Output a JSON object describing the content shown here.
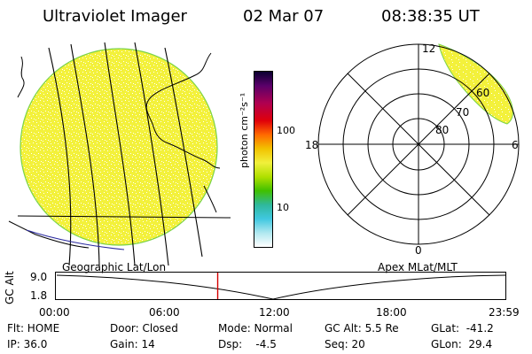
{
  "header": {
    "instrument": "Ultraviolet Imager",
    "date": "02 Mar 07",
    "time": "08:38:35 UT"
  },
  "colorbar": {
    "label": "photon cm⁻²s⁻¹",
    "ticks": [
      "100",
      "10"
    ]
  },
  "polar": {
    "mlt_labels": {
      "top": "12",
      "left": "18",
      "right": "6",
      "bottom": "0"
    },
    "lat_labels": [
      "60",
      "70",
      "80"
    ]
  },
  "altitude_panel": {
    "axis_label": "GC Alt",
    "y_ticks": [
      "9.0",
      "1.8"
    ],
    "left_title": "Geographic Lat/Lon",
    "right_title": "Apex MLat/MLT",
    "x_ticks": [
      "00:00",
      "06:00",
      "12:00",
      "18:00",
      "23:59"
    ],
    "current_fraction": 0.36
  },
  "status": {
    "flt": "Flt: HOME",
    "ip": "IP: 36.0",
    "door": "Door: Closed",
    "gain": "Gain: 14",
    "mode": "Mode: Normal",
    "dsp": "Dsp:    -4.5",
    "gcalt": "GC Alt: 5.5 Re",
    "seq": "Seq: 20",
    "glat": "GLat:  -41.2",
    "glon": "GLon:  29.4"
  },
  "colors": {
    "disk_fill": "#f1f03c",
    "disk_edge": "#7ad34a",
    "marker": "#d40000"
  }
}
